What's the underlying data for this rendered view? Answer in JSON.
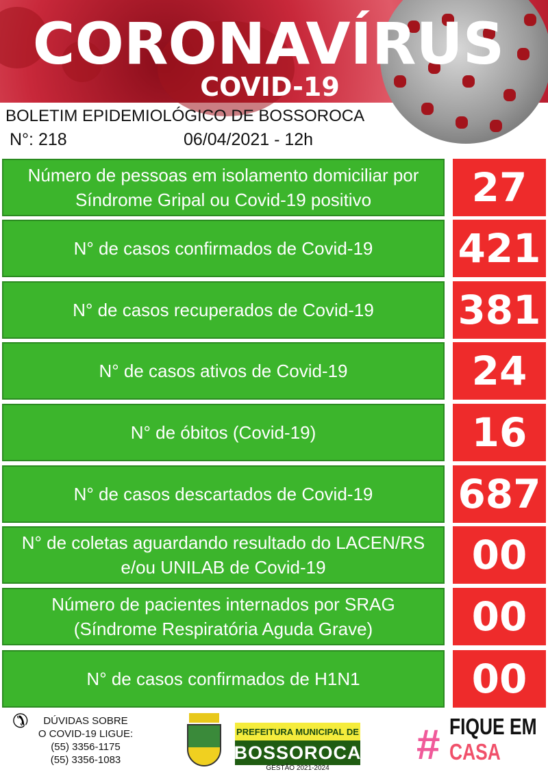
{
  "header": {
    "title": "CORONAVÍRUS",
    "subtitle": "COVID-19",
    "bulletin": "BOLETIM EPIDEMIOLÓGICO DE BOSSOROCA",
    "number": "N°: 218",
    "datetime": "06/04/2021 - 12h"
  },
  "rows": [
    {
      "label": "Número de pessoas em isolamento domiciliar por Síndrome Gripal ou Covid-19 positivo",
      "value": "27"
    },
    {
      "label": "N° de casos confirmados de Covid-19",
      "value": "421"
    },
    {
      "label": "N° de casos recuperados de Covid-19",
      "value": "381"
    },
    {
      "label": "N° de casos ativos de Covid-19",
      "value": "24"
    },
    {
      "label": "N° de óbitos (Covid-19)",
      "value": "16"
    },
    {
      "label": "N° de casos descartados de Covid-19",
      "value": "687"
    },
    {
      "label": "N° de coletas aguardando resultado do LACEN/RS e/ou UNILAB de Covid-19",
      "value": "00"
    },
    {
      "label": "Número de pacientes internados por SRAG (Síndrome Respiratória Aguda Grave)",
      "value": "00"
    },
    {
      "label": "N° de casos confirmados de H1N1",
      "value": "00"
    }
  ],
  "footer": {
    "contact_line1": "DÚVIDAS SOBRE",
    "contact_line2": "O COVID-19 LIGUE:",
    "phone1": "(55) 3356-1175",
    "phone2": "(55) 3356-1083",
    "logo_top": "PREFEITURA MUNICIPAL DE",
    "logo_name": "BOSSOROCA",
    "logo_term": "GESTÃO 2021-2024",
    "hashtag": "#",
    "slogan1": "FIQUE EM",
    "slogan2": "CASA"
  },
  "colors": {
    "green": "#3cb52c",
    "red": "#ee2b2b",
    "pink": "#f05a9a"
  }
}
